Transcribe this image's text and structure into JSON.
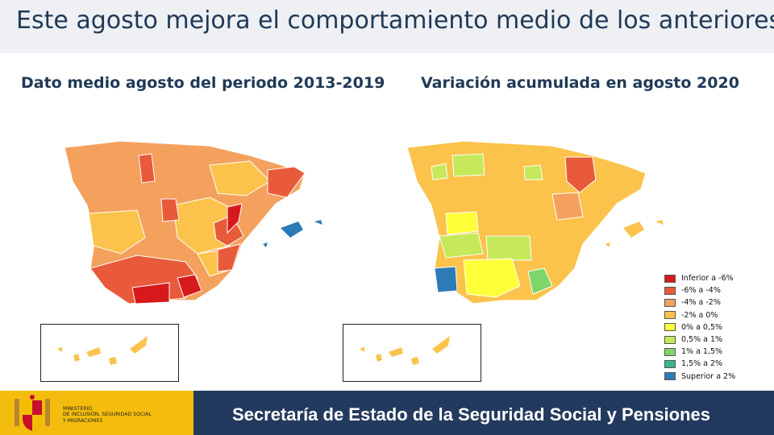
{
  "header": {
    "title": "Este agosto mejora el comportamiento medio de los anteriores"
  },
  "maps": [
    {
      "subtitle": "Dato medio agosto del periodo 2013-2019"
    },
    {
      "subtitle": "Variación acumulada en agosto 2020"
    }
  ],
  "legend": {
    "items": [
      {
        "label": "Inferior a -6%",
        "color": "#d7191c"
      },
      {
        "label": "-6% a -4%",
        "color": "#e85a3a"
      },
      {
        "label": "-4% a -2%",
        "color": "#f4a15e"
      },
      {
        "label": "-2% a 0%",
        "color": "#fbc34b"
      },
      {
        "label": "0% a 0,5%",
        "color": "#ffff3a"
      },
      {
        "label": "0,5% a 1%",
        "color": "#c5e95a"
      },
      {
        "label": "1% a 1,5%",
        "color": "#7dd66a"
      },
      {
        "label": "1,5% a 2%",
        "color": "#3cb48a"
      },
      {
        "label": "Superior a 2%",
        "color": "#2c7bb6"
      }
    ]
  },
  "footer": {
    "ministry_lines": [
      "MINISTERIO",
      "DE INCLUSIÓN, SEGURIDAD SOCIAL",
      "Y MIGRACIONES"
    ],
    "text": "Secretaría de Estado de la Seguridad Social y Pensiones"
  },
  "colors": {
    "title_text": "#1f3957",
    "footer_navy": "#233a5e",
    "footer_yellow": "#f4bd0e"
  }
}
